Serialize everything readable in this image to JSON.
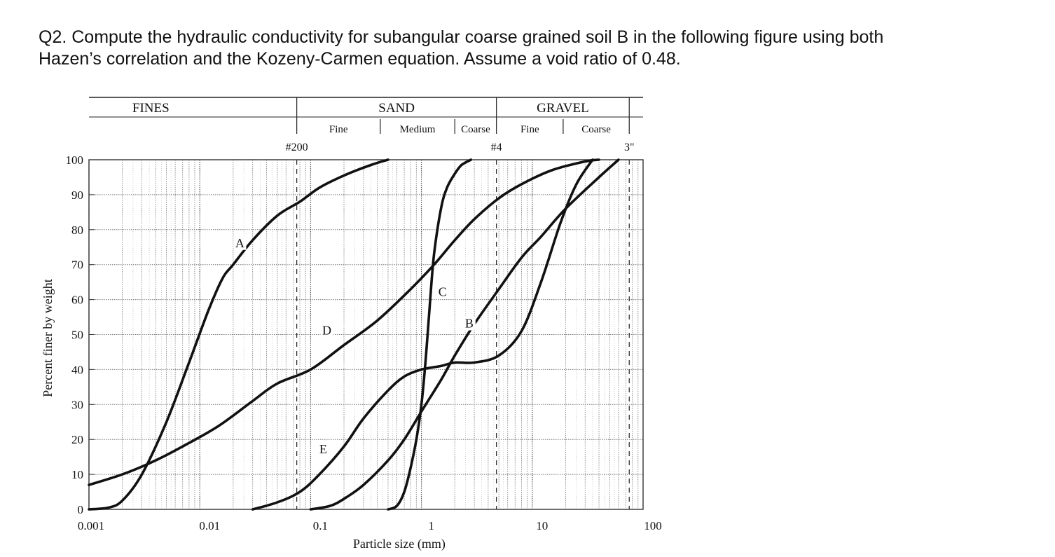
{
  "question": {
    "line1": "Q2. Compute the hydraulic conductivity for subangular coarse grained soil B in the following figure using both",
    "line2": "Hazen’s correlation and the Kozeny-Carmen equation. Assume a void ratio of 0.48."
  },
  "classification": {
    "groups": [
      "FINES",
      "SAND",
      "GRAVEL"
    ],
    "subgroups": [
      {
        "label": "Fine",
        "group": "SAND"
      },
      {
        "label": "Medium",
        "group": "SAND"
      },
      {
        "label": "Coarse",
        "group": "SAND"
      },
      {
        "label": "Fine",
        "group": "GRAVEL"
      },
      {
        "label": "Coarse",
        "group": "GRAVEL"
      }
    ],
    "sieves": [
      {
        "label": "#200",
        "size_mm": 0.075
      },
      {
        "label": "#4",
        "size_mm": 4.75
      },
      {
        "label": "3\"",
        "size_mm": 75
      }
    ]
  },
  "chart_data": {
    "type": "line",
    "xlabel": "Particle size (mm)",
    "ylabel": "Percent finer by weight",
    "xscale": "log",
    "xlim": [
      0.001,
      100
    ],
    "ylim": [
      0,
      100
    ],
    "x_tick_labels": [
      "0.001",
      "0.01",
      "0.1",
      "1",
      "10",
      "100"
    ],
    "x_ticks": [
      0.001,
      0.01,
      0.1,
      1,
      10,
      100
    ],
    "y_ticks": [
      0,
      10,
      20,
      30,
      40,
      50,
      60,
      70,
      80,
      90,
      100
    ],
    "y_tick_labels": [
      "0",
      "10",
      "20",
      "30",
      "40",
      "50",
      "60",
      "70",
      "80",
      "90",
      "100"
    ],
    "grid": true,
    "series": [
      {
        "name": "A",
        "x": [
          0.001,
          0.0015,
          0.002,
          0.003,
          0.005,
          0.008,
          0.012,
          0.016,
          0.02,
          0.03,
          0.05,
          0.08,
          0.12,
          0.2,
          0.35,
          0.5
        ],
        "y": [
          0,
          0.5,
          2.5,
          10,
          25,
          42,
          57,
          66,
          70,
          77,
          84,
          88,
          92,
          95.5,
          98.5,
          100
        ]
      },
      {
        "name": "B",
        "x": [
          0.1,
          0.15,
          0.2,
          0.3,
          0.5,
          0.7,
          1,
          1.5,
          2,
          3,
          5,
          8,
          12,
          20,
          40,
          60
        ],
        "y": [
          0,
          1,
          3,
          7,
          14,
          20,
          28,
          37,
          44,
          53,
          63,
          72,
          78,
          86,
          95,
          100
        ]
      },
      {
        "name": "C",
        "x": [
          0.5,
          0.6,
          0.7,
          0.8,
          0.9,
          1,
          1.1,
          1.2,
          1.3,
          1.5,
          1.7,
          2,
          2.3,
          2.8
        ],
        "y": [
          0,
          1,
          5,
          12,
          20,
          30,
          44,
          60,
          73,
          86,
          92,
          96,
          98.5,
          100
        ]
      },
      {
        "name": "D",
        "x": [
          0.001,
          0.002,
          0.004,
          0.008,
          0.015,
          0.03,
          0.05,
          0.1,
          0.2,
          0.4,
          0.8,
          1.3,
          2,
          3,
          5,
          8,
          15,
          30,
          40
        ],
        "y": [
          7,
          10,
          14,
          19,
          24,
          31,
          36,
          40,
          47,
          54,
          63,
          70,
          77,
          83,
          89,
          93,
          97,
          99.5,
          100
        ]
      },
      {
        "name": "E",
        "x": [
          0.03,
          0.05,
          0.08,
          0.12,
          0.2,
          0.3,
          0.5,
          0.7,
          1,
          1.5,
          2,
          3,
          5,
          8,
          12,
          18,
          25,
          35
        ],
        "y": [
          0,
          2,
          5,
          10,
          18,
          26,
          34,
          38,
          40,
          41,
          42,
          42,
          44,
          51,
          65,
          82,
          93,
          100
        ]
      }
    ],
    "annotations": [
      "A",
      "B",
      "C",
      "D",
      "E"
    ]
  }
}
